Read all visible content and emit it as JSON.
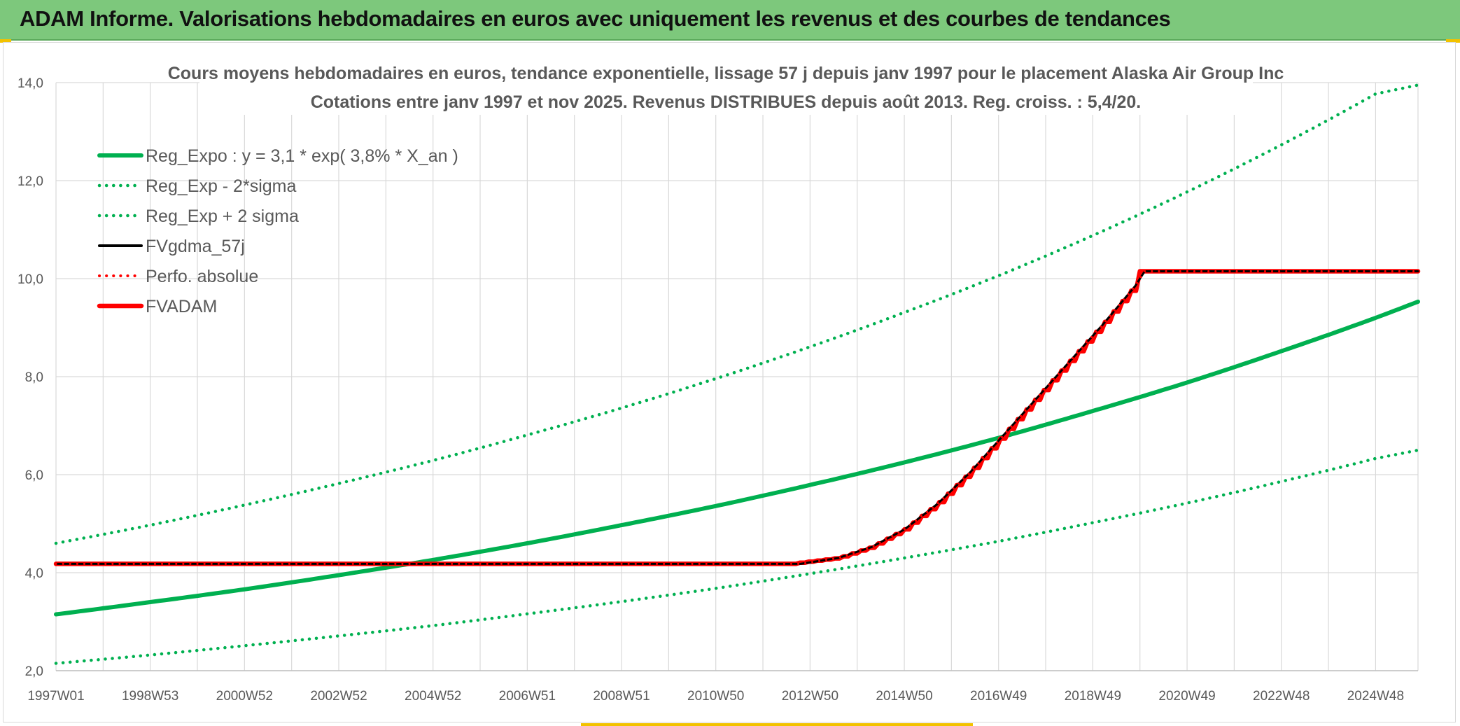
{
  "header": {
    "title": "ADAM Informe. Valorisations hebdomadaires en euros avec uniquement les revenus et des courbes de tendances"
  },
  "colors": {
    "header_bg": "#7dc87c",
    "reg_green": "#00b050",
    "red": "#ff0000",
    "black": "#000000",
    "grid": "#d9d9d9"
  },
  "chart_data": {
    "type": "line",
    "title": "Cours moyens hebdomadaires en euros, tendance exponentielle, lissage 57 j depuis janv 1997 pour le placement Alaska Air Group Inc",
    "subtitle": "Cotations entre janv 1997 et nov 2025. Revenus DISTRIBUES depuis août 2013. Reg. croiss. : 5,4/20.",
    "xlabel": "",
    "ylabel": "",
    "x_range": [
      1997.0,
      2025.9
    ],
    "ylim": [
      2.0,
      14.0
    ],
    "y_ticks": [
      "2,0",
      "4,0",
      "6,0",
      "8,0",
      "10,0",
      "12,0",
      "14,0"
    ],
    "y_tick_values": [
      2,
      4,
      6,
      8,
      10,
      12,
      14
    ],
    "x_tick_labels": [
      "1997W01",
      "1998W53",
      "2000W52",
      "2002W52",
      "2004W52",
      "2006W51",
      "2008W51",
      "2010W50",
      "2012W50",
      "2014W50",
      "2016W49",
      "2018W49",
      "2020W49",
      "2022W48",
      "2024W48"
    ],
    "x_tick_values": [
      1997.0,
      1999.0,
      2001.0,
      2003.0,
      2005.0,
      2007.0,
      2009.0,
      2011.0,
      2013.0,
      2015.0,
      2017.0,
      2019.0,
      2021.0,
      2023.0,
      2025.0
    ],
    "grid": true,
    "legend_position": "top-left",
    "series": [
      {
        "name": "Reg_Expo : y = 3,1 * exp( 3,8% *  X_an )",
        "style": "solid-thick",
        "color": "#00b050",
        "x": [
          1997.0,
          1999.0,
          2001.0,
          2003.0,
          2005.0,
          2007.0,
          2009.0,
          2011.0,
          2013.0,
          2015.0,
          2017.0,
          2019.0,
          2021.0,
          2023.0,
          2025.0,
          2025.9
        ],
        "y": [
          3.15,
          3.4,
          3.66,
          3.95,
          4.26,
          4.6,
          4.97,
          5.36,
          5.79,
          6.25,
          6.75,
          7.3,
          7.88,
          8.52,
          9.2,
          9.53
        ]
      },
      {
        "name": "Reg_Exp - 2*sigma",
        "style": "dotted",
        "color": "#00b050",
        "x": [
          1997.0,
          1999.0,
          2001.0,
          2003.0,
          2005.0,
          2007.0,
          2009.0,
          2011.0,
          2013.0,
          2015.0,
          2017.0,
          2019.0,
          2021.0,
          2023.0,
          2025.0,
          2025.9
        ],
        "y": [
          2.15,
          2.32,
          2.51,
          2.71,
          2.92,
          3.16,
          3.41,
          3.68,
          3.98,
          4.3,
          4.64,
          5.02,
          5.42,
          5.86,
          6.33,
          6.5
        ]
      },
      {
        "name": "Reg_Exp + 2 sigma",
        "style": "dotted",
        "color": "#00b050",
        "x": [
          1997.0,
          1999.0,
          2001.0,
          2003.0,
          2005.0,
          2007.0,
          2009.0,
          2011.0,
          2013.0,
          2015.0,
          2017.0,
          2019.0,
          2021.0,
          2023.0,
          2025.0,
          2025.9
        ],
        "y": [
          4.6,
          4.97,
          5.38,
          5.82,
          6.29,
          6.81,
          7.36,
          7.96,
          8.61,
          9.31,
          10.06,
          10.88,
          11.77,
          12.73,
          13.77,
          13.95
        ]
      },
      {
        "name": "FVgdma_57j",
        "style": "solid",
        "color": "#000000",
        "x": [
          1997.0,
          2012.8,
          2013.6,
          2014.3,
          2015.0,
          2015.7,
          2016.4,
          2017.1,
          2017.8,
          2018.5,
          2019.2,
          2019.9,
          2020.1,
          2025.9
        ],
        "y": [
          4.18,
          4.18,
          4.3,
          4.52,
          4.88,
          5.4,
          6.05,
          6.8,
          7.55,
          8.3,
          9.05,
          9.85,
          10.15,
          10.15
        ]
      },
      {
        "name": "Perfo. absolue",
        "style": "dotted",
        "color": "#ff0000",
        "x": [
          1997.0,
          2012.8,
          2013.6,
          2014.3,
          2015.0,
          2015.7,
          2016.4,
          2017.1,
          2017.8,
          2018.5,
          2019.2,
          2019.9,
          2020.1,
          2025.9
        ],
        "y": [
          4.18,
          4.18,
          4.3,
          4.52,
          4.88,
          5.4,
          6.05,
          6.8,
          7.55,
          8.3,
          9.05,
          9.85,
          10.15,
          10.15
        ]
      },
      {
        "name": "FVADAM",
        "style": "solid-thick-steps",
        "color": "#ff0000",
        "x": [
          1997.0,
          2012.6,
          2013.6,
          2014.3,
          2015.0,
          2015.7,
          2016.4,
          2017.1,
          2017.8,
          2018.5,
          2019.2,
          2019.9,
          2020.0,
          2025.9
        ],
        "y": [
          4.18,
          4.18,
          4.3,
          4.52,
          4.88,
          5.4,
          6.05,
          6.8,
          7.55,
          8.3,
          9.05,
          9.85,
          10.15,
          10.15
        ]
      }
    ]
  }
}
